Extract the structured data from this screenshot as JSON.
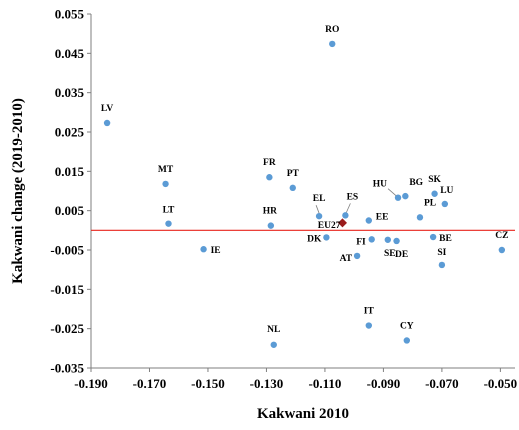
{
  "chart_data": {
    "type": "scatter",
    "title": "",
    "xlabel": "Kakwani 2010",
    "ylabel": "Kakwani change (2019-2010)",
    "xlim": [
      -0.19,
      -0.045
    ],
    "ylim": [
      -0.035,
      0.055
    ],
    "xticks": [
      -0.19,
      -0.17,
      -0.15,
      -0.13,
      -0.11,
      -0.09,
      -0.07,
      -0.05
    ],
    "yticks": [
      -0.035,
      -0.025,
      -0.015,
      -0.005,
      0.005,
      0.015,
      0.025,
      0.035,
      0.045,
      0.055
    ],
    "xtick_labels": [
      "-0.190",
      "-0.170",
      "-0.150",
      "-0.130",
      "-0.110",
      "-0.090",
      "-0.070",
      "-0.050"
    ],
    "ytick_labels": [
      "-0.035",
      "-0.025",
      "-0.015",
      "-0.005",
      "0.005",
      "0.015",
      "0.025",
      "0.035",
      "0.045",
      "0.055"
    ],
    "reference_line": {
      "y": 0.0,
      "color": "#e8251d"
    },
    "grid": false,
    "legend": false,
    "point_color": "#5b9bd5",
    "highlight_color": "#9b1c1c",
    "points": [
      {
        "label": "RO",
        "x": -0.1075,
        "y": 0.0474
      },
      {
        "label": "LV",
        "x": -0.1845,
        "y": 0.0273
      },
      {
        "label": "MT",
        "x": -0.1645,
        "y": 0.0118
      },
      {
        "label": "LT",
        "x": -0.1635,
        "y": 0.0017
      },
      {
        "label": "IE",
        "x": -0.1515,
        "y": -0.0048
      },
      {
        "label": "FR",
        "x": -0.129,
        "y": 0.0135
      },
      {
        "label": "PT",
        "x": -0.121,
        "y": 0.0108
      },
      {
        "label": "HR",
        "x": -0.1285,
        "y": 0.0012
      },
      {
        "label": "EL",
        "x": -0.112,
        "y": 0.0036
      },
      {
        "label": "DK",
        "x": -0.1095,
        "y": -0.0018
      },
      {
        "label": "EU27",
        "x": -0.104,
        "y": 0.0019,
        "highlight": true
      },
      {
        "label": "ES",
        "x": -0.103,
        "y": 0.0038
      },
      {
        "label": "AT",
        "x": -0.099,
        "y": -0.0065
      },
      {
        "label": "FI",
        "x": -0.094,
        "y": -0.0023
      },
      {
        "label": "EE",
        "x": -0.095,
        "y": 0.0025
      },
      {
        "label": "SE",
        "x": -0.0885,
        "y": -0.0024
      },
      {
        "label": "DE",
        "x": -0.0855,
        "y": -0.0027
      },
      {
        "label": "HU",
        "x": -0.085,
        "y": 0.0083
      },
      {
        "label": "BG",
        "x": -0.0825,
        "y": 0.0087
      },
      {
        "label": "PL",
        "x": -0.0775,
        "y": 0.0033
      },
      {
        "label": "SK",
        "x": -0.0725,
        "y": 0.0093
      },
      {
        "label": "LU",
        "x": -0.069,
        "y": 0.0067
      },
      {
        "label": "BE",
        "x": -0.073,
        "y": -0.0017
      },
      {
        "label": "SI",
        "x": -0.07,
        "y": -0.0088
      },
      {
        "label": "CZ",
        "x": -0.0495,
        "y": -0.005
      },
      {
        "label": "IT",
        "x": -0.095,
        "y": -0.0242
      },
      {
        "label": "CY",
        "x": -0.082,
        "y": -0.028
      },
      {
        "label": "NL",
        "x": -0.1275,
        "y": -0.0291
      }
    ]
  }
}
